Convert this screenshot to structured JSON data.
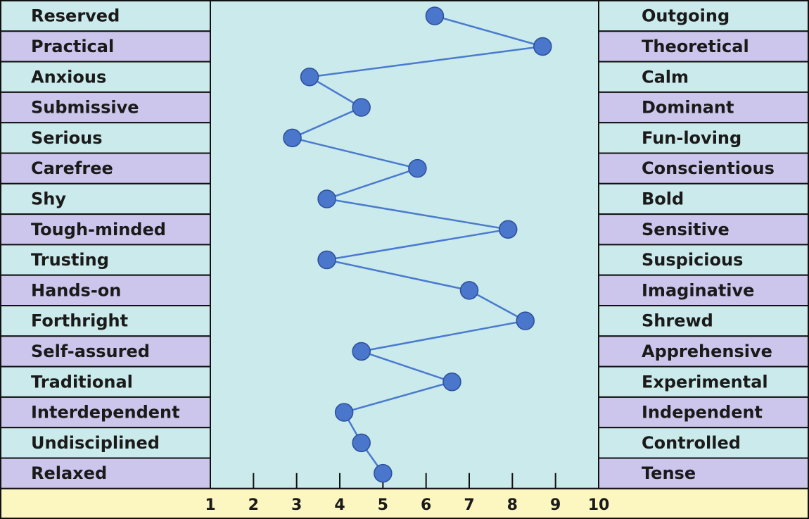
{
  "chart_data": {
    "type": "line",
    "title": "",
    "xlabel": "",
    "ylabel": "",
    "xlim": [
      1,
      10
    ],
    "x_ticks": [
      "1",
      "2",
      "3",
      "4",
      "5",
      "6",
      "7",
      "8",
      "9",
      "10"
    ],
    "grid": false,
    "colors": {
      "row_a": "#cbeaeb",
      "row_b": "#cdc6ec",
      "plot_bg": "#cbeaeb",
      "axis_band": "#fcf6c1",
      "line": "#4a7ad0",
      "marker": "#4a76cc",
      "marker_edge": "#2b4f9a",
      "border": "#111111"
    },
    "traits": [
      {
        "left": "Reserved",
        "right": "Outgoing",
        "value": 6.2
      },
      {
        "left": "Practical",
        "right": "Theoretical",
        "value": 8.7
      },
      {
        "left": "Anxious",
        "right": "Calm",
        "value": 3.3
      },
      {
        "left": "Submissive",
        "right": "Dominant",
        "value": 4.5
      },
      {
        "left": "Serious",
        "right": "Fun-loving",
        "value": 2.9
      },
      {
        "left": "Carefree",
        "right": "Conscientious",
        "value": 5.8
      },
      {
        "left": "Shy",
        "right": "Bold",
        "value": 3.7
      },
      {
        "left": "Tough-minded",
        "right": "Sensitive",
        "value": 7.9
      },
      {
        "left": "Trusting",
        "right": "Suspicious",
        "value": 3.7
      },
      {
        "left": "Hands-on",
        "right": "Imaginative",
        "value": 7.0
      },
      {
        "left": "Forthright",
        "right": "Shrewd",
        "value": 8.3
      },
      {
        "left": "Self-assured",
        "right": "Apprehensive",
        "value": 4.5
      },
      {
        "left": "Traditional",
        "right": "Experimental",
        "value": 6.6
      },
      {
        "left": "Interdependent",
        "right": "Independent",
        "value": 4.1
      },
      {
        "left": "Undisciplined",
        "right": "Controlled",
        "value": 4.5
      },
      {
        "left": "Relaxed",
        "right": "Tense",
        "value": 5.0
      }
    ]
  }
}
